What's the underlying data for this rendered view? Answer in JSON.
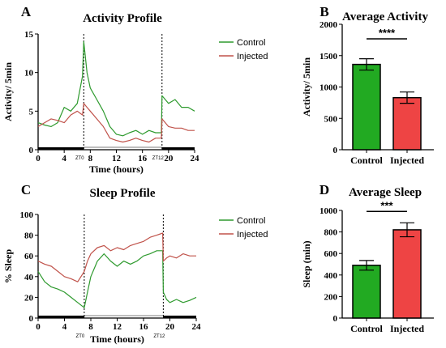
{
  "colors": {
    "control": "#22aa22",
    "injected": "#ee4444",
    "control_line": "#2e9a2e",
    "injected_line": "#c0524a"
  },
  "chart_data": [
    {
      "id": "A",
      "panel_letter": "A",
      "type": "line",
      "title": "Activity Profile",
      "xlabel": "Time (hours)",
      "ylabel": "Activity/ 5min",
      "xlim": [
        0,
        24
      ],
      "ylim": [
        0,
        15
      ],
      "xticks": [
        "0",
        "4",
        "8",
        "12",
        "16",
        "20",
        "24"
      ],
      "yticks": [
        "0",
        "5",
        "10",
        "15"
      ],
      "markers": [
        {
          "x": 7,
          "label": "ZT0"
        },
        {
          "x": 19,
          "label": "ZT12"
        }
      ],
      "legend": "top-right",
      "series": [
        {
          "name": "Control",
          "x": [
            0,
            1,
            2,
            3,
            4,
            5,
            6,
            6.8,
            7,
            7.5,
            8,
            9,
            10,
            11,
            12,
            13,
            14,
            15,
            16,
            17,
            18,
            18.9,
            19,
            19.5,
            20,
            21,
            22,
            23,
            24
          ],
          "y": [
            3.5,
            3.2,
            3.0,
            3.5,
            5.5,
            5.0,
            6.0,
            9.5,
            14.0,
            10.0,
            8.0,
            6.5,
            5.0,
            3.0,
            2.0,
            1.8,
            2.2,
            2.5,
            2.0,
            2.5,
            2.2,
            2.2,
            7.0,
            6.5,
            6.0,
            6.5,
            5.5,
            5.5,
            5.0
          ]
        },
        {
          "name": "Injected",
          "x": [
            0,
            1,
            2,
            3,
            4,
            5,
            6,
            6.8,
            7,
            7.5,
            8,
            9,
            10,
            11,
            12,
            13,
            14,
            15,
            16,
            17,
            18,
            18.9,
            19,
            19.5,
            20,
            21,
            22,
            23,
            24
          ],
          "y": [
            3.0,
            3.5,
            4.0,
            3.8,
            3.5,
            4.5,
            5.0,
            4.5,
            6.0,
            5.5,
            5.0,
            4.0,
            3.0,
            1.5,
            1.2,
            1.0,
            1.2,
            1.5,
            1.2,
            1.0,
            1.5,
            1.5,
            4.0,
            3.5,
            3.0,
            2.8,
            2.8,
            2.5,
            2.5
          ]
        }
      ]
    },
    {
      "id": "B",
      "panel_letter": "B",
      "type": "bar",
      "title": "Average Activity",
      "ylabel": "Activity/ 5min",
      "categories": [
        "Control",
        "Injected"
      ],
      "values": [
        1360,
        830
      ],
      "errors": [
        90,
        90
      ],
      "ylim": [
        0,
        2000
      ],
      "yticks": [
        "0",
        "500",
        "1000",
        "1500",
        "2000"
      ],
      "significance": "****"
    },
    {
      "id": "C",
      "panel_letter": "C",
      "type": "line",
      "title": "Sleep Profile",
      "xlabel": "Time (hours)",
      "ylabel": "% Sleep",
      "xlim": [
        0,
        24
      ],
      "ylim": [
        0,
        100
      ],
      "xticks": [
        "0",
        "4",
        "8",
        "12",
        "16",
        "20",
        "24"
      ],
      "yticks": [
        "0",
        "20",
        "40",
        "60",
        "80",
        "100"
      ],
      "markers": [
        {
          "x": 7,
          "label": "ZT0"
        },
        {
          "x": 19,
          "label": "ZT12"
        }
      ],
      "legend": "top-right",
      "series": [
        {
          "name": "Control",
          "x": [
            0,
            1,
            2,
            3,
            4,
            5,
            6,
            7,
            7.5,
            8,
            9,
            10,
            11,
            12,
            13,
            14,
            15,
            16,
            17,
            18,
            18.9,
            19,
            19.5,
            20,
            21,
            22,
            23,
            24
          ],
          "y": [
            45,
            35,
            30,
            28,
            25,
            20,
            15,
            10,
            25,
            40,
            55,
            62,
            55,
            50,
            55,
            52,
            55,
            60,
            62,
            65,
            65,
            25,
            18,
            15,
            18,
            15,
            17,
            20
          ]
        },
        {
          "name": "Injected",
          "x": [
            0,
            1,
            2,
            3,
            4,
            5,
            6,
            7,
            7.5,
            8,
            9,
            10,
            11,
            12,
            13,
            14,
            15,
            16,
            17,
            18,
            18.9,
            19,
            19.5,
            20,
            21,
            22,
            23,
            24
          ],
          "y": [
            55,
            52,
            50,
            45,
            40,
            38,
            35,
            45,
            55,
            62,
            68,
            70,
            65,
            68,
            66,
            70,
            72,
            74,
            78,
            80,
            82,
            55,
            58,
            60,
            58,
            62,
            60,
            60
          ]
        }
      ]
    },
    {
      "id": "D",
      "panel_letter": "D",
      "type": "bar",
      "title": "Average Sleep",
      "ylabel": "Sleep (min)",
      "categories": [
        "Control",
        "Injected"
      ],
      "values": [
        490,
        820
      ],
      "errors": [
        45,
        65
      ],
      "ylim": [
        0,
        1000
      ],
      "yticks": [
        "0",
        "200",
        "400",
        "600",
        "800",
        "1000"
      ],
      "significance": "***"
    }
  ]
}
